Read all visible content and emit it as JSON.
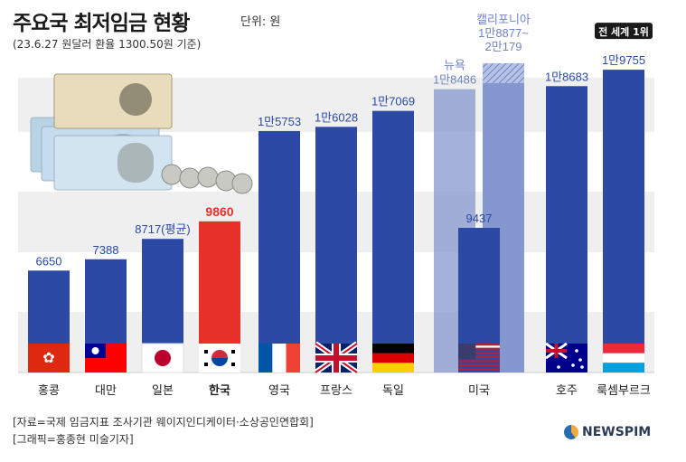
{
  "header": {
    "title": "주요국 최저임금 현황",
    "unit": "단위: 원",
    "subtitle": "(23.6.27 원달러 환율 1300.50원 기준)"
  },
  "footer": {
    "source": "[자료=국제 임금지표 조사기관 웨이지인디케이터·소상공인연합회]",
    "graphic": "[그래픽=홍종현 미술기자]",
    "logo": "NEWSPIM"
  },
  "colors": {
    "bar": "#2b49a5",
    "highlight": "#e8302a",
    "us_state": "#8497cf",
    "grid_band": "#efefef"
  },
  "chart_data": {
    "type": "bar",
    "title": "주요국 최저임금 현황",
    "ylabel": "원",
    "ylim": [
      0,
      21000
    ],
    "categories": [
      "홍콩",
      "대만",
      "일본",
      "한국",
      "영국",
      "프랑스",
      "독일",
      "미국",
      "호주",
      "룩셈부르크"
    ],
    "values": [
      6650,
      7388,
      8717,
      9860,
      15753,
      16028,
      17069,
      9437,
      18683,
      19755
    ],
    "value_labels": [
      "6650",
      "7388",
      "8717(평균)",
      "9860",
      "1만5753",
      "1만6028",
      "1만7069",
      "9437",
      "1만8683",
      "1만9755"
    ],
    "highlight_category": "한국",
    "us_states": [
      {
        "name": "뉴욕",
        "value": 18486,
        "label": "1만8486"
      },
      {
        "name": "캘리포니아",
        "value_range": [
          18877,
          20179
        ],
        "label": "1만8877~",
        "label2": "2만179"
      }
    ],
    "annotation": "전 세계 1위"
  }
}
